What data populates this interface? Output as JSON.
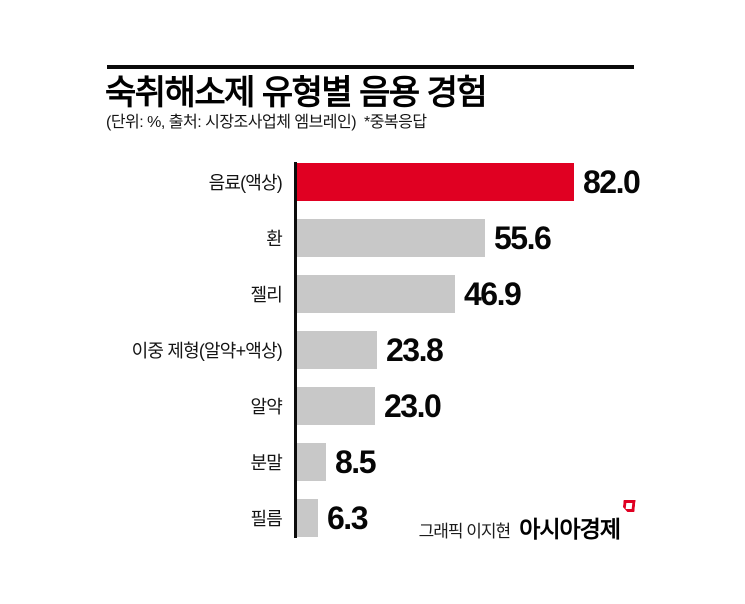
{
  "header": {
    "title": "숙취해소제 유형별 음용 경험",
    "subtitle": "(단위: %, 출처: 시장조사업체 엠브레인)  *중복응답"
  },
  "chart_data": {
    "type": "bar",
    "orientation": "horizontal",
    "title": "숙취해소제 유형별 음용 경험",
    "unit": "%",
    "note": "중복응답",
    "source": "시장조사업체 엠브레인",
    "categories": [
      "음료(액상)",
      "환",
      "젤리",
      "이중 제형(알약+액상)",
      "알약",
      "분말",
      "필름"
    ],
    "values": [
      82.0,
      55.6,
      46.9,
      23.8,
      23.0,
      8.5,
      6.3
    ],
    "value_labels": [
      "82.0",
      "55.6",
      "46.9",
      "23.8",
      "23.0",
      "8.5",
      "6.3"
    ],
    "xlim": [
      0,
      100
    ],
    "grid": false,
    "legend": false,
    "highlight_index": 0,
    "highlight_color": "#e00022",
    "bar_color": "#c8c8c8",
    "axis_color": "#0c0c0c"
  },
  "credit": {
    "author": "그래픽 이지현",
    "brand": "아시아경제",
    "brand_mark": "speech-bubble-mark",
    "brand_mark_color": "#e00022"
  }
}
